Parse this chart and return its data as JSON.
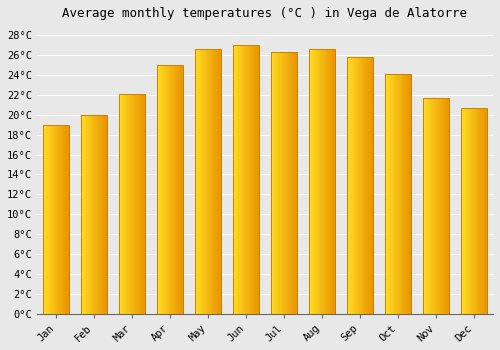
{
  "title": "Average monthly temperatures (°C ) in Vega de Alatorre",
  "months": [
    "Jan",
    "Feb",
    "Mar",
    "Apr",
    "May",
    "Jun",
    "Jul",
    "Aug",
    "Sep",
    "Oct",
    "Nov",
    "Dec"
  ],
  "values": [
    19.0,
    20.0,
    22.1,
    25.0,
    26.6,
    27.0,
    26.3,
    26.6,
    25.8,
    24.1,
    21.7,
    20.7
  ],
  "bar_color_left": "#FFD966",
  "bar_color_right": "#E8920A",
  "bar_color_mid": "#FFA820",
  "bar_edge_color": "#CC8000",
  "ylim": [
    0,
    29
  ],
  "yticks": [
    0,
    2,
    4,
    6,
    8,
    10,
    12,
    14,
    16,
    18,
    20,
    22,
    24,
    26,
    28
  ],
  "ytick_labels": [
    "0°C",
    "2°C",
    "4°C",
    "6°C",
    "8°C",
    "10°C",
    "12°C",
    "14°C",
    "16°C",
    "18°C",
    "20°C",
    "22°C",
    "24°C",
    "26°C",
    "28°C"
  ],
  "bg_color": "#e8e8e8",
  "plot_bg_color": "#e8e8e8",
  "grid_color": "#ffffff",
  "title_fontsize": 9,
  "tick_fontsize": 7.5,
  "font_family": "monospace"
}
